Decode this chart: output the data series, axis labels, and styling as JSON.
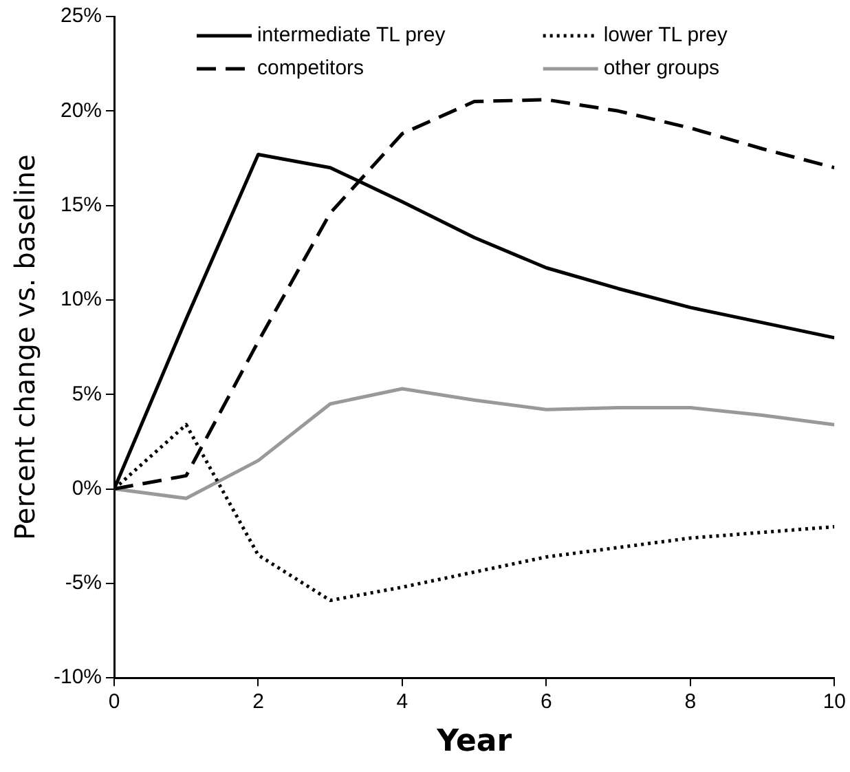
{
  "chart_data": {
    "type": "line",
    "xlabel": "Year",
    "ylabel": "Percent change vs. baseline",
    "x": [
      0,
      1,
      2,
      3,
      4,
      5,
      6,
      7,
      8,
      9,
      10
    ],
    "series": [
      {
        "name": "intermediate TL prey",
        "color": "#000000",
        "line_style": "solid",
        "values": [
          0,
          9.0,
          17.7,
          17.0,
          15.2,
          13.3,
          11.7,
          10.6,
          9.6,
          8.8,
          8.0
        ]
      },
      {
        "name": "lower TL prey",
        "color": "#000000",
        "line_style": "dotted",
        "values": [
          0,
          3.4,
          -3.5,
          -5.9,
          -5.2,
          -4.4,
          -3.6,
          -3.1,
          -2.6,
          -2.3,
          -2.0
        ]
      },
      {
        "name": "competitors",
        "color": "#000000",
        "line_style": "dashed",
        "values": [
          0,
          0.7,
          7.8,
          14.6,
          18.8,
          20.5,
          20.6,
          20.0,
          19.1,
          18.0,
          17.0
        ]
      },
      {
        "name": "other groups",
        "color": "#999999",
        "line_style": "solid",
        "values": [
          0,
          -0.5,
          1.5,
          4.5,
          5.3,
          4.7,
          4.2,
          4.3,
          4.3,
          3.9,
          3.4
        ]
      }
    ],
    "xlim": [
      0,
      10
    ],
    "xticks": [
      0,
      2,
      4,
      6,
      8,
      10
    ],
    "ylim": [
      -10,
      25
    ],
    "yticks": [
      {
        "value": -10,
        "label": "-10%"
      },
      {
        "value": -5,
        "label": "-5%"
      },
      {
        "value": 0,
        "label": "0%"
      },
      {
        "value": 5,
        "label": "5%"
      },
      {
        "value": 10,
        "label": "10%"
      },
      {
        "value": 15,
        "label": "15%"
      },
      {
        "value": 20,
        "label": "20%"
      },
      {
        "value": 25,
        "label": "25%"
      }
    ],
    "grid": false,
    "legend": "top",
    "marker": "none"
  }
}
